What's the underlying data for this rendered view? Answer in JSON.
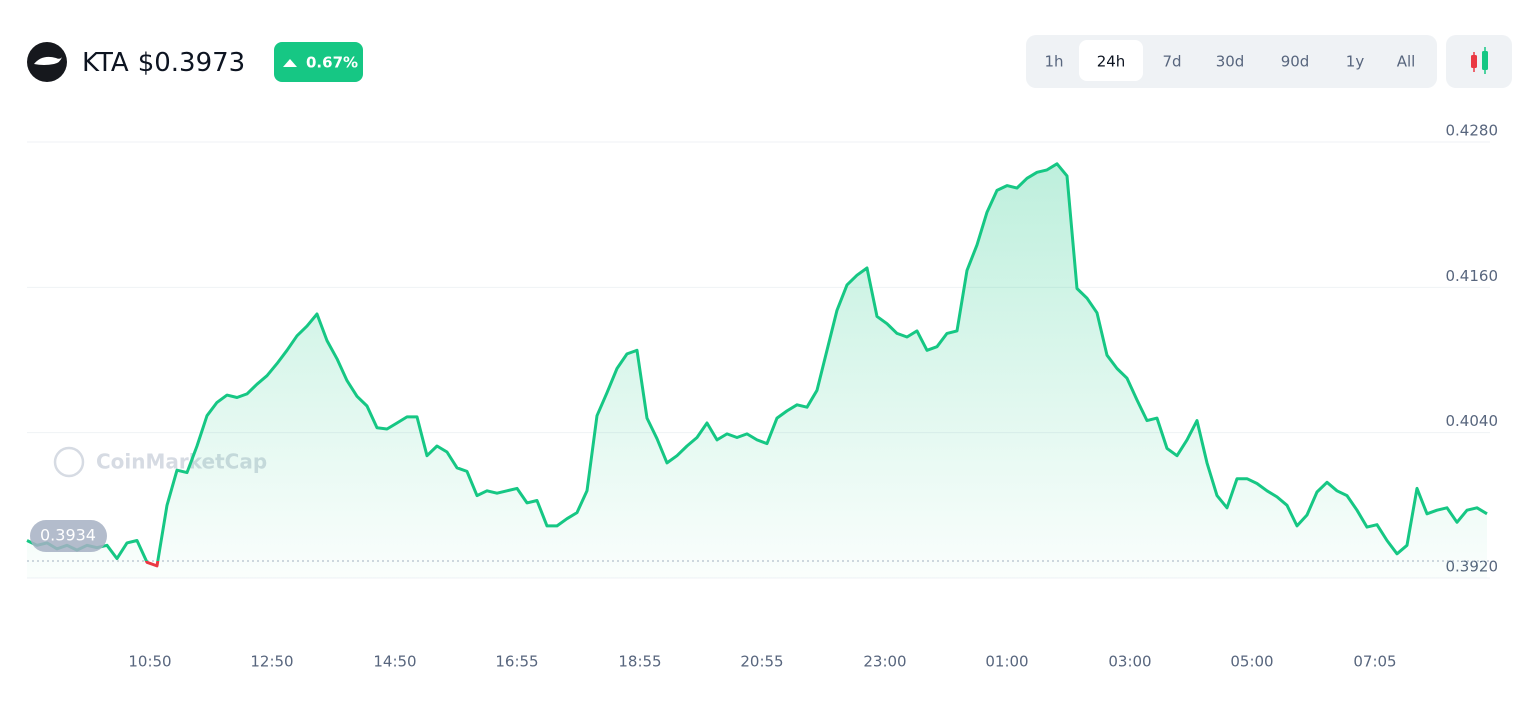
{
  "header": {
    "symbol": "KTA",
    "price": "$0.3973",
    "change": "0.67%"
  },
  "ranges": [
    {
      "label": "1h"
    },
    {
      "label": "24h",
      "selected": true
    },
    {
      "label": "7d"
    },
    {
      "label": "30d"
    },
    {
      "label": "90d"
    },
    {
      "label": "1y"
    },
    {
      "label": "All"
    }
  ],
  "chart_data": {
    "type": "line",
    "watermark": "CoinMarketCap",
    "color": "#16c784",
    "below_color": "#ea3943",
    "reference_value": 0.3934,
    "values": [
      0.3951,
      0.3947,
      0.3949,
      0.3944,
      0.3947,
      0.3943,
      0.3947,
      0.3945,
      0.3947,
      0.3936,
      0.3949,
      0.3951,
      0.3933,
      0.393,
      0.398,
      0.4009,
      0.4007,
      0.4029,
      0.4054,
      0.4065,
      0.4071,
      0.4069,
      0.4072,
      0.408,
      0.4087,
      0.4097,
      0.4108,
      0.412,
      0.4128,
      0.4138,
      0.4116,
      0.4101,
      0.4083,
      0.407,
      0.4062,
      0.4044,
      0.4043,
      0.4048,
      0.4053,
      0.4053,
      0.4021,
      0.4029,
      0.4024,
      0.4011,
      0.4008,
      0.3988,
      0.3992,
      0.399,
      0.3992,
      0.3994,
      0.3982,
      0.3984,
      0.3963,
      0.3963,
      0.3969,
      0.3974,
      0.3992,
      0.4054,
      0.4073,
      0.4093,
      0.4105,
      0.4108,
      0.4052,
      0.4035,
      0.4015,
      0.4021,
      0.4029,
      0.4036,
      0.4048,
      0.4034,
      0.4039,
      0.4036,
      0.4039,
      0.4034,
      0.4031,
      0.4052,
      0.4058,
      0.4063,
      0.4061,
      0.4075,
      0.4108,
      0.4141,
      0.4162,
      0.417,
      0.4176,
      0.4136,
      0.413,
      0.4122,
      0.4119,
      0.4124,
      0.4108,
      0.4111,
      0.4122,
      0.4124,
      0.4174,
      0.4195,
      0.4222,
      0.424,
      0.4244,
      0.4242,
      0.425,
      0.4255,
      0.4257,
      0.4262,
      0.4252,
      0.4159,
      0.4151,
      0.4139,
      0.4104,
      0.4093,
      0.4085,
      0.4067,
      0.405,
      0.4052,
      0.4027,
      0.4021,
      0.4034,
      0.405,
      0.4015,
      0.3988,
      0.3978,
      0.4002,
      0.4002,
      0.3998,
      0.3992,
      0.3987,
      0.398,
      0.3963,
      0.3972,
      0.3991,
      0.3999,
      0.3992,
      0.3988,
      0.3976,
      0.3962,
      0.3964,
      0.3951,
      0.394,
      0.3947,
      0.3994,
      0.3973,
      0.3976,
      0.3978,
      0.3966,
      0.3976,
      0.3978,
      0.3973
    ],
    "xlim": [
      0,
      146
    ],
    "xticks": [
      {
        "value": 12.3,
        "label": "10:50"
      },
      {
        "value": 24.5,
        "label": "12:50"
      },
      {
        "value": 36.8,
        "label": "14:50"
      },
      {
        "value": 49,
        "label": "16:55"
      },
      {
        "value": 61.3,
        "label": "18:55"
      },
      {
        "value": 73.5,
        "label": "20:55"
      },
      {
        "value": 85.8,
        "label": "23:00"
      },
      {
        "value": 98,
        "label": "01:00"
      },
      {
        "value": 110.3,
        "label": "03:00"
      },
      {
        "value": 122.5,
        "label": "05:00"
      },
      {
        "value": 134.8,
        "label": "07:05"
      }
    ],
    "ylim": [
      0.392,
      0.428
    ],
    "yticks": [
      {
        "value": 0.392,
        "label": "0.3920"
      },
      {
        "value": 0.404,
        "label": "0.4040"
      },
      {
        "value": 0.416,
        "label": "0.4160"
      },
      {
        "value": 0.428,
        "label": "0.4280"
      }
    ],
    "grid": true
  }
}
